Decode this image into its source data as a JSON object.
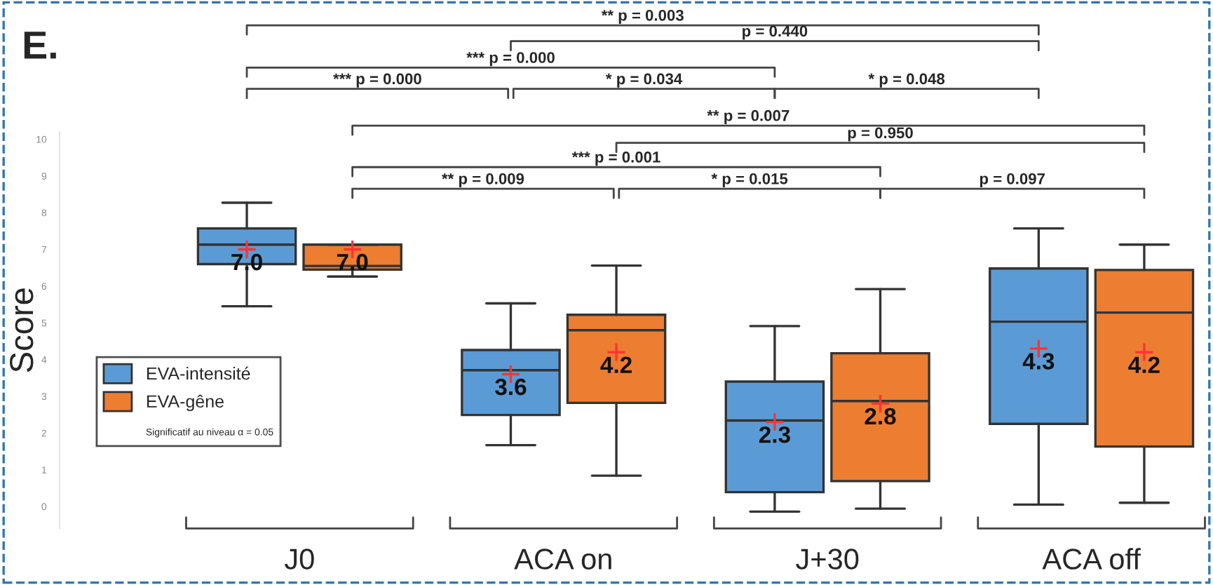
{
  "chart_data": {
    "type": "box",
    "title": "E.",
    "ylabel": "Score",
    "categories": [
      "J0",
      "ACA on",
      "J+30",
      "ACA off"
    ],
    "ylim": [
      -0.6,
      10.2
    ],
    "yticks": [
      0,
      1,
      2,
      3,
      4,
      5,
      6,
      7,
      8,
      9,
      10
    ],
    "series": [
      {
        "name": "EVA-intensité",
        "color": "#5b9bd5",
        "boxes": [
          {
            "low": 5.45,
            "q1": 6.6,
            "median": 7.13,
            "q3": 7.57,
            "high": 8.27,
            "mean": 7.0
          },
          {
            "low": 1.67,
            "q1": 2.49,
            "median": 3.71,
            "q3": 4.26,
            "high": 5.53,
            "mean": 3.6
          },
          {
            "low": -0.14,
            "q1": 0.39,
            "median": 2.34,
            "q3": 3.4,
            "high": 4.91,
            "mean": 2.3
          },
          {
            "low": 0.05,
            "q1": 2.25,
            "median": 5.03,
            "q3": 6.48,
            "high": 7.57,
            "mean": 4.3
          }
        ],
        "value_labels": [
          "7.0",
          "3.6",
          "2.3",
          "4.3"
        ]
      },
      {
        "name": "EVA-gêne",
        "color": "#ed7d31",
        "boxes": [
          {
            "low": 6.26,
            "q1": 6.45,
            "median": 6.55,
            "q3": 7.13,
            "high": 7.13,
            "mean": 7.0
          },
          {
            "low": 0.84,
            "q1": 2.82,
            "median": 4.8,
            "q3": 5.22,
            "high": 6.56,
            "mean": 4.2
          },
          {
            "low": -0.06,
            "q1": 0.69,
            "median": 2.87,
            "q3": 4.17,
            "high": 5.92,
            "mean": 2.8
          },
          {
            "low": 0.1,
            "q1": 1.63,
            "median": 5.28,
            "q3": 6.44,
            "high": 7.13,
            "mean": 4.2
          }
        ],
        "value_labels": [
          "7.0",
          "4.2",
          "2.8",
          "4.2"
        ]
      }
    ],
    "legend": "left",
    "grid": false,
    "annotations": [
      "** p = 0.003",
      "p = 0.440",
      "*** p = 0.000",
      "*** p = 0.000",
      "* p = 0.034",
      "* p = 0.048",
      "** p = 0.007",
      "p = 0.950",
      "*** p = 0.001",
      "** p = 0.009",
      "* p = 0.015",
      "p = 0.097",
      "Significatif au niveau α = 0.05"
    ]
  }
}
